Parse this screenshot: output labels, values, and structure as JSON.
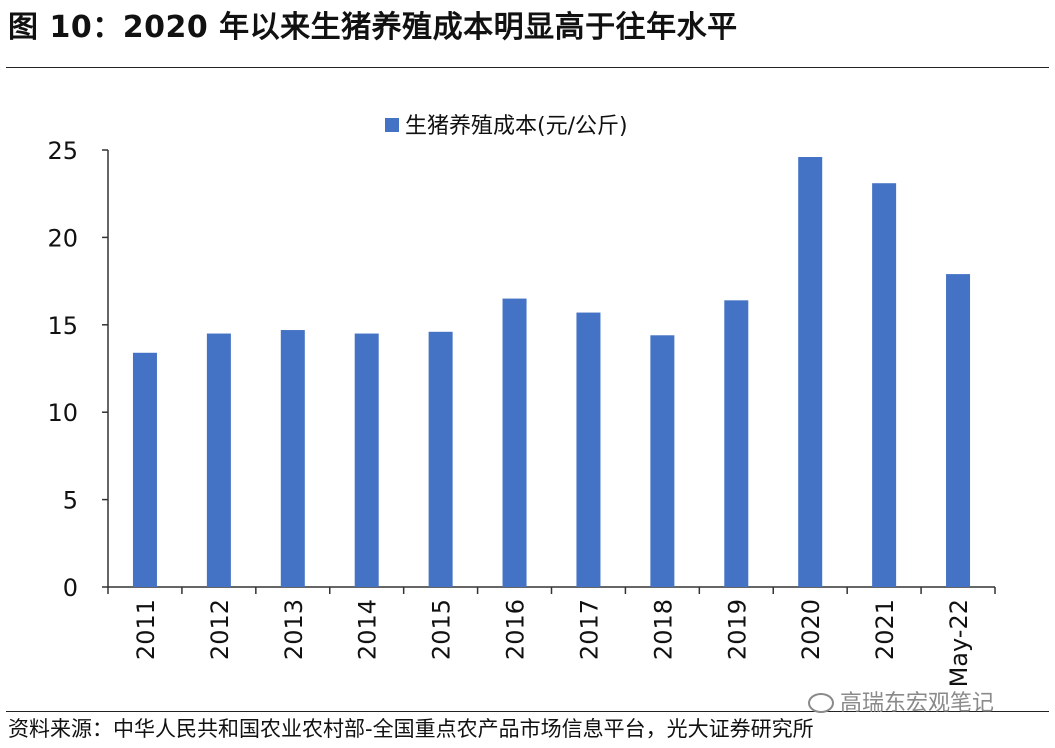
{
  "figure": {
    "title": "图 10：2020 年以来生猪养殖成本明显高于往年水平",
    "source": "资料来源：中华人民共和国农业农村部-全国重点农产品市场信息平台，光大证券研究所",
    "watermark": "高瑞东宏观笔记",
    "watermark_icon": "wechat-icon"
  },
  "chart_data": {
    "type": "bar",
    "title": "",
    "xlabel": "",
    "ylabel": "",
    "categories": [
      "2011",
      "2012",
      "2013",
      "2014",
      "2015",
      "2016",
      "2017",
      "2018",
      "2019",
      "2020",
      "2021",
      "May-22"
    ],
    "series": [
      {
        "name": "生猪养殖成本(元/公斤)",
        "color": "#4472C4",
        "values": [
          13.4,
          14.5,
          14.7,
          14.5,
          14.6,
          16.5,
          15.7,
          14.4,
          16.4,
          24.6,
          23.1,
          17.9
        ]
      }
    ],
    "ylim": [
      0,
      25
    ],
    "yticks": [
      "0",
      "5",
      "10",
      "15",
      "20",
      "25"
    ],
    "grid": false,
    "legend_position": "top-center",
    "x_tick_rotation": "vertical"
  }
}
